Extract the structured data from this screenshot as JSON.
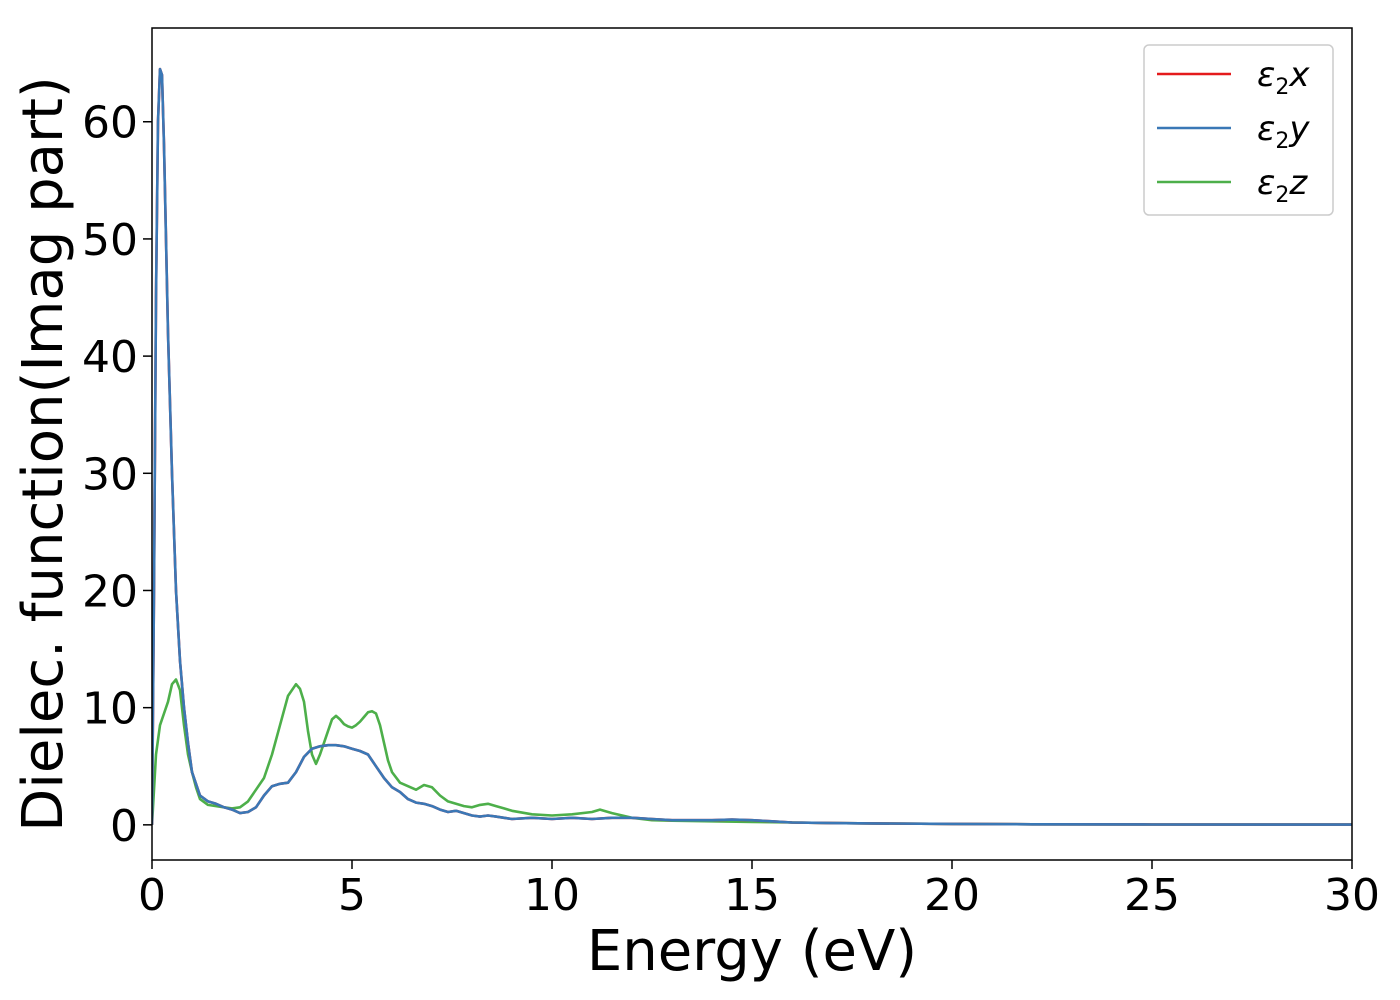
{
  "chart_data": {
    "type": "line",
    "xlabel": "Energy (eV)",
    "ylabel": "Dielec. function(Imag part)",
    "xlim": [
      0,
      30
    ],
    "ylim": [
      -3,
      68
    ],
    "xticks": [
      0,
      5,
      10,
      15,
      20,
      25,
      30
    ],
    "yticks": [
      0,
      10,
      20,
      30,
      40,
      50,
      60
    ],
    "grid": false,
    "legend_position": "top-right",
    "series": [
      {
        "name_base": "ε",
        "name_sub": "2",
        "name_suffix": "x",
        "color": "#e41a1c",
        "x": [
          0,
          0.05,
          0.1,
          0.15,
          0.2,
          0.25,
          0.3,
          0.35,
          0.4,
          0.5,
          0.6,
          0.7,
          0.8,
          0.9,
          1.0,
          1.2,
          1.4,
          1.6,
          1.8,
          2.0,
          2.2,
          2.4,
          2.6,
          2.8,
          3.0,
          3.2,
          3.4,
          3.6,
          3.8,
          4.0,
          4.2,
          4.4,
          4.6,
          4.8,
          5.0,
          5.2,
          5.4,
          5.6,
          5.8,
          6.0,
          6.2,
          6.4,
          6.6,
          6.8,
          7.0,
          7.2,
          7.4,
          7.6,
          7.8,
          8.0,
          8.2,
          8.4,
          8.6,
          8.8,
          9.0,
          9.5,
          10.0,
          10.5,
          11.0,
          11.5,
          12.0,
          12.5,
          13.0,
          13.5,
          14.0,
          14.5,
          15.0,
          15.5,
          16.0,
          17.0,
          18.0,
          20.0,
          22.0,
          25.0,
          30.0
        ],
        "y": [
          0,
          20,
          45,
          60,
          64.5,
          64.0,
          58,
          50,
          42,
          30,
          20,
          14,
          10,
          7,
          4.5,
          2.5,
          2.0,
          1.8,
          1.5,
          1.3,
          1.0,
          1.1,
          1.5,
          2.5,
          3.3,
          3.5,
          3.6,
          4.5,
          5.8,
          6.5,
          6.7,
          6.8,
          6.8,
          6.7,
          6.5,
          6.3,
          6.0,
          5.0,
          4.0,
          3.2,
          2.8,
          2.2,
          1.9,
          1.8,
          1.6,
          1.3,
          1.1,
          1.2,
          1.0,
          0.8,
          0.7,
          0.8,
          0.7,
          0.6,
          0.5,
          0.6,
          0.5,
          0.6,
          0.5,
          0.6,
          0.6,
          0.5,
          0.4,
          0.4,
          0.4,
          0.45,
          0.4,
          0.3,
          0.2,
          0.15,
          0.12,
          0.08,
          0.05,
          0.03,
          0.02
        ]
      },
      {
        "name_base": "ε",
        "name_sub": "2",
        "name_suffix": "y",
        "color": "#3a78b6",
        "x": [
          0,
          0.05,
          0.1,
          0.15,
          0.2,
          0.25,
          0.3,
          0.35,
          0.4,
          0.5,
          0.6,
          0.7,
          0.8,
          0.9,
          1.0,
          1.2,
          1.4,
          1.6,
          1.8,
          2.0,
          2.2,
          2.4,
          2.6,
          2.8,
          3.0,
          3.2,
          3.4,
          3.6,
          3.8,
          4.0,
          4.2,
          4.4,
          4.6,
          4.8,
          5.0,
          5.2,
          5.4,
          5.6,
          5.8,
          6.0,
          6.2,
          6.4,
          6.6,
          6.8,
          7.0,
          7.2,
          7.4,
          7.6,
          7.8,
          8.0,
          8.2,
          8.4,
          8.6,
          8.8,
          9.0,
          9.5,
          10.0,
          10.5,
          11.0,
          11.5,
          12.0,
          12.5,
          13.0,
          13.5,
          14.0,
          14.5,
          15.0,
          15.5,
          16.0,
          17.0,
          18.0,
          20.0,
          22.0,
          25.0,
          30.0
        ],
        "y": [
          0,
          20,
          45,
          60,
          64.5,
          64.0,
          58,
          50,
          42,
          30,
          20,
          14,
          10,
          7,
          4.5,
          2.5,
          2.0,
          1.8,
          1.5,
          1.3,
          1.0,
          1.1,
          1.5,
          2.5,
          3.3,
          3.5,
          3.6,
          4.5,
          5.8,
          6.5,
          6.7,
          6.8,
          6.8,
          6.7,
          6.5,
          6.3,
          6.0,
          5.0,
          4.0,
          3.2,
          2.8,
          2.2,
          1.9,
          1.8,
          1.6,
          1.3,
          1.1,
          1.2,
          1.0,
          0.8,
          0.7,
          0.8,
          0.7,
          0.6,
          0.5,
          0.6,
          0.5,
          0.6,
          0.5,
          0.6,
          0.6,
          0.5,
          0.4,
          0.4,
          0.4,
          0.45,
          0.4,
          0.3,
          0.2,
          0.15,
          0.12,
          0.08,
          0.05,
          0.03,
          0.02
        ]
      },
      {
        "name_base": "ε",
        "name_sub": "2",
        "name_suffix": "z",
        "color": "#4daf4a",
        "x": [
          0,
          0.05,
          0.1,
          0.2,
          0.3,
          0.4,
          0.5,
          0.6,
          0.7,
          0.8,
          0.9,
          1.0,
          1.1,
          1.2,
          1.4,
          1.6,
          1.8,
          2.0,
          2.2,
          2.4,
          2.6,
          2.8,
          3.0,
          3.2,
          3.4,
          3.6,
          3.7,
          3.8,
          3.9,
          4.0,
          4.1,
          4.2,
          4.3,
          4.4,
          4.5,
          4.6,
          4.7,
          4.8,
          4.9,
          5.0,
          5.1,
          5.2,
          5.3,
          5.4,
          5.5,
          5.6,
          5.7,
          5.8,
          5.9,
          6.0,
          6.2,
          6.4,
          6.6,
          6.8,
          7.0,
          7.2,
          7.4,
          7.6,
          7.8,
          8.0,
          8.2,
          8.4,
          8.6,
          8.8,
          9.0,
          9.5,
          10.0,
          10.5,
          11.0,
          11.2,
          11.5,
          12.0,
          12.5,
          13.0,
          14.0,
          15.0,
          16.0,
          17.0,
          18.0,
          20.0,
          22.0,
          25.0,
          30.0
        ],
        "y": [
          0,
          3,
          6,
          8.5,
          9.5,
          10.5,
          12.0,
          12.4,
          11.5,
          8.5,
          6.0,
          4.5,
          3.2,
          2.2,
          1.7,
          1.6,
          1.5,
          1.4,
          1.5,
          2.0,
          3.0,
          4.0,
          6.0,
          8.5,
          11.0,
          12.0,
          11.6,
          10.5,
          8.0,
          6.0,
          5.2,
          6.0,
          7.0,
          8.0,
          9.0,
          9.3,
          9.0,
          8.6,
          8.4,
          8.3,
          8.5,
          8.8,
          9.2,
          9.6,
          9.7,
          9.5,
          8.5,
          7.0,
          5.5,
          4.5,
          3.6,
          3.3,
          3.0,
          3.4,
          3.2,
          2.5,
          2.0,
          1.8,
          1.6,
          1.5,
          1.7,
          1.8,
          1.6,
          1.4,
          1.2,
          0.9,
          0.8,
          0.9,
          1.1,
          1.3,
          1.0,
          0.6,
          0.4,
          0.35,
          0.3,
          0.25,
          0.2,
          0.15,
          0.12,
          0.08,
          0.05,
          0.03,
          0.02
        ]
      }
    ]
  }
}
